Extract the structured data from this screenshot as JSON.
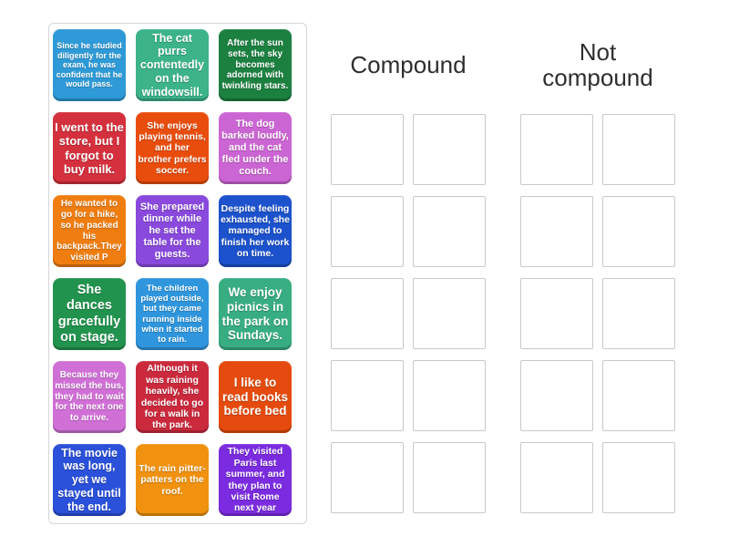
{
  "groups": [
    {
      "id": "compound",
      "label": "Compound",
      "slot_count": 10
    },
    {
      "id": "not-compound",
      "label": "Not compound",
      "slot_count": 10
    }
  ],
  "cards": [
    {
      "text": "Since he studied diligently for the exam, he was confident that he would pass.",
      "color": "#2e9ad7",
      "font_size": 9
    },
    {
      "text": "The cat purrs contentedly on the windowsill.",
      "color": "#3cb389",
      "font_size": 12.5
    },
    {
      "text": "After the sun sets, the sky becomes adorned with twinkling stars.",
      "color": "#1b8040",
      "font_size": 10
    },
    {
      "text": "I went to the store, but I forgot to buy milk.",
      "color": "#d4303d",
      "font_size": 13
    },
    {
      "text": "She enjoys playing tennis, and her brother prefers soccer.",
      "color": "#e94d0d",
      "font_size": 10.5
    },
    {
      "text": "The dog barked loudly, and the cat fled under the couch.",
      "color": "#cc65d4",
      "font_size": 11
    },
    {
      "text": "He wanted to go for a hike, so he packed his backpack.They visited P",
      "color": "#ef7d10",
      "font_size": 10
    },
    {
      "text": "She prepared dinner while he set the table for the guests.",
      "color": "#8a49dd",
      "font_size": 11
    },
    {
      "text": "Despite feeling exhausted, she managed to finish her work on time.",
      "color": "#1c52cc",
      "font_size": 10.5
    },
    {
      "text": "She dances gracefully on stage.",
      "color": "#22934e",
      "font_size": 14.5
    },
    {
      "text": "The children played outside, but they came running inside when it started to rain.",
      "color": "#2f96de",
      "font_size": 9.5
    },
    {
      "text": "We enjoy picnics in the park on Sundays.",
      "color": "#38ad82",
      "font_size": 13.5
    },
    {
      "text": "Because they missed the bus, they had to wait for the next one to arrive.",
      "color": "#d06fd6",
      "font_size": 10
    },
    {
      "text": "Although it was raining heavily, she decided to go for a walk in the park.",
      "color": "#cb2a3d",
      "font_size": 10.5
    },
    {
      "text": "I like to read books before bed",
      "color": "#e54b0e",
      "font_size": 13.5
    },
    {
      "text": "The movie was long, yet we stayed until the end.",
      "color": "#2b50d9",
      "font_size": 12.5
    },
    {
      "text": "The rain pitter-patters on the roof.",
      "color": "#f0920f",
      "font_size": 10.5
    },
    {
      "text": "They visited Paris last summer, and they plan to visit Rome next year",
      "color": "#7b2ce0",
      "font_size": 10.5
    }
  ],
  "colors": {
    "background": "#ffffff",
    "panel_border": "#d6d6d6",
    "slot_border": "#c9c9c9",
    "header_text": "#2e2e2e",
    "card_text": "#ffffff"
  }
}
